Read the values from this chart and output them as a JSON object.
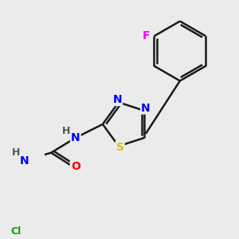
{
  "background_color": "#ebebeb",
  "bond_color": "#1a1a1a",
  "atom_colors": {
    "N": "#0000ff",
    "S": "#cccc00",
    "O": "#ff0000",
    "F": "#ff00ff",
    "Cl": "#00aa00",
    "H": "#555555",
    "C": "#1a1a1a"
  },
  "line_width": 1.8,
  "font_size": 10
}
